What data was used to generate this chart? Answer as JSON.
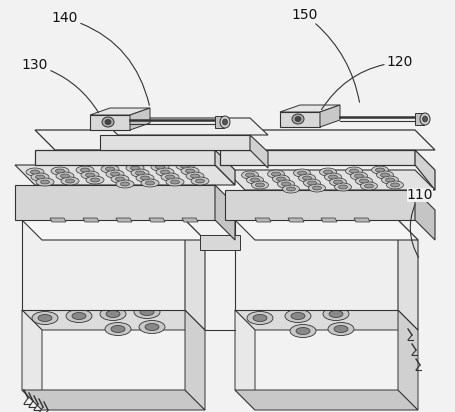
{
  "bg_color": "#f2f2f2",
  "line_color": "#333333",
  "figsize": [
    4.55,
    4.12
  ],
  "dpi": 100,
  "label_fontsize": 10
}
